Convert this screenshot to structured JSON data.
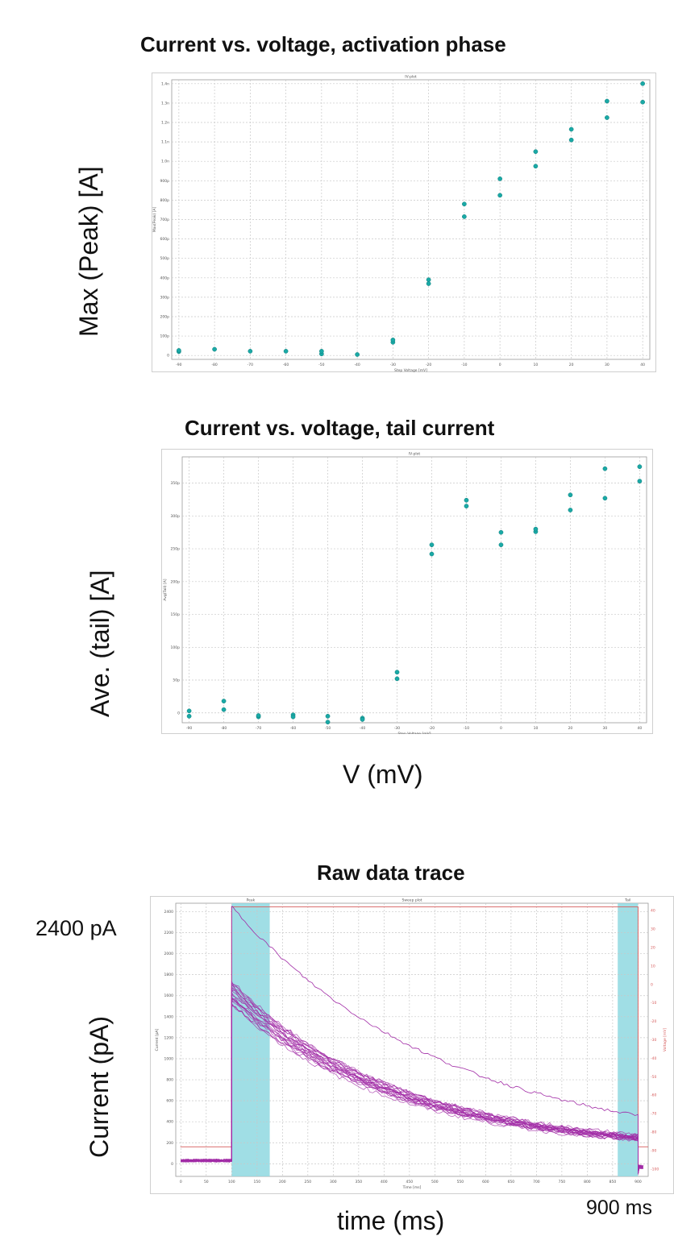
{
  "chart_data": [
    {
      "type": "scatter",
      "title": "Current vs. voltage, activation phase",
      "inner_title": "IV-plot",
      "ylabel": "Max (Peak) [A]",
      "inner_ylabel": "Max(Peak) [A]",
      "inner_xlabel": "Step Voltage [mV]",
      "xlim": [
        -92,
        42
      ],
      "ylim": [
        -20,
        1420
      ],
      "x_ticks": [
        -90,
        -80,
        -70,
        -60,
        -50,
        -40,
        -30,
        -20,
        -10,
        0,
        10,
        20,
        30,
        40
      ],
      "y_ticks": [
        0,
        100,
        200,
        300,
        400,
        500,
        600,
        700,
        800,
        900,
        1000,
        1100,
        1200,
        1300,
        1400
      ],
      "y_tick_labels": [
        "0",
        "100p",
        "200p",
        "300p",
        "400p",
        "500p",
        "600p",
        "700p",
        "800p",
        "900p",
        "1.0n",
        "1.1n",
        "1.2n",
        "1.3n",
        "1.4n"
      ],
      "grid": true,
      "color": "#1aa9a6",
      "points": [
        {
          "x": -90,
          "y": 20
        },
        {
          "x": -90,
          "y": 26
        },
        {
          "x": -80,
          "y": 32
        },
        {
          "x": -70,
          "y": 22
        },
        {
          "x": -60,
          "y": 22
        },
        {
          "x": -50,
          "y": 8
        },
        {
          "x": -50,
          "y": 22
        },
        {
          "x": -40,
          "y": 5
        },
        {
          "x": -30,
          "y": 68
        },
        {
          "x": -30,
          "y": 80
        },
        {
          "x": -20,
          "y": 370
        },
        {
          "x": -20,
          "y": 390
        },
        {
          "x": -10,
          "y": 715
        },
        {
          "x": -10,
          "y": 780
        },
        {
          "x": 0,
          "y": 825
        },
        {
          "x": 0,
          "y": 910
        },
        {
          "x": 10,
          "y": 975
        },
        {
          "x": 10,
          "y": 1050
        },
        {
          "x": 20,
          "y": 1110
        },
        {
          "x": 20,
          "y": 1165
        },
        {
          "x": 30,
          "y": 1225
        },
        {
          "x": 30,
          "y": 1310
        },
        {
          "x": 40,
          "y": 1305
        },
        {
          "x": 40,
          "y": 1400
        }
      ]
    },
    {
      "type": "scatter",
      "title": "Current vs. voltage, tail current",
      "inner_title": "IV-plot",
      "ylabel": "Ave. (tail) [A]",
      "inner_ylabel": "Avg(Tail) [A]",
      "inner_xlabel": "Step Voltage [mV]",
      "xlabel": "V (mV)",
      "xlim": [
        -92,
        42
      ],
      "ylim": [
        -15,
        390
      ],
      "x_ticks": [
        -90,
        -80,
        -70,
        -60,
        -50,
        -40,
        -30,
        -20,
        -10,
        0,
        10,
        20,
        30,
        40
      ],
      "y_ticks": [
        0,
        50,
        100,
        150,
        200,
        250,
        300,
        350
      ],
      "y_tick_labels": [
        "0",
        "50p",
        "100p",
        "150p",
        "200p",
        "250p",
        "300p",
        "350p"
      ],
      "grid": true,
      "color": "#1aa9a6",
      "points": [
        {
          "x": -90,
          "y": -5
        },
        {
          "x": -90,
          "y": 3
        },
        {
          "x": -80,
          "y": 5
        },
        {
          "x": -80,
          "y": 18
        },
        {
          "x": -70,
          "y": -6
        },
        {
          "x": -70,
          "y": -4
        },
        {
          "x": -60,
          "y": -3
        },
        {
          "x": -60,
          "y": -6
        },
        {
          "x": -50,
          "y": -5
        },
        {
          "x": -50,
          "y": -14
        },
        {
          "x": -40,
          "y": -8
        },
        {
          "x": -40,
          "y": -10
        },
        {
          "x": -30,
          "y": 52
        },
        {
          "x": -30,
          "y": 62
        },
        {
          "x": -20,
          "y": 242
        },
        {
          "x": -20,
          "y": 256
        },
        {
          "x": -10,
          "y": 315
        },
        {
          "x": -10,
          "y": 324
        },
        {
          "x": 0,
          "y": 256
        },
        {
          "x": 0,
          "y": 275
        },
        {
          "x": 10,
          "y": 276
        },
        {
          "x": 10,
          "y": 280
        },
        {
          "x": 20,
          "y": 309
        },
        {
          "x": 20,
          "y": 332
        },
        {
          "x": 30,
          "y": 327
        },
        {
          "x": 30,
          "y": 372
        },
        {
          "x": 40,
          "y": 353
        },
        {
          "x": 40,
          "y": 375
        }
      ]
    },
    {
      "type": "line",
      "title": "Raw data trace",
      "inner_title": "Sweep plot",
      "ylabel": "Current (pA)",
      "inner_ylabel": "Current [pA]",
      "inner_xlabel": "Time [ms]",
      "xlabel": "time (ms)",
      "right_ylabel": "Voltage [mV]",
      "xlim": [
        -10,
        920
      ],
      "ylim": [
        -120,
        2480
      ],
      "x_ticks": [
        0,
        50,
        100,
        150,
        200,
        250,
        300,
        350,
        400,
        450,
        500,
        550,
        600,
        650,
        700,
        750,
        800,
        850,
        900
      ],
      "y_ticks": [
        0,
        200,
        400,
        600,
        800,
        1000,
        1200,
        1400,
        1600,
        1800,
        2000,
        2200,
        2400
      ],
      "y2_ticks": [
        40,
        30,
        20,
        10,
        0,
        -10,
        -20,
        -30,
        -40,
        -50,
        -60,
        -70,
        -80,
        -90,
        -100
      ],
      "y2lim": [
        -104,
        44
      ],
      "grid": true,
      "annotation_left": "2400 pA",
      "annotation_right": "900 ms",
      "regions": [
        {
          "label": "Peak",
          "x0": 100,
          "x1": 175,
          "color": "#8fd8e0"
        },
        {
          "label": "Tail",
          "x0": 860,
          "x1": 900,
          "color": "#8fd8e0"
        }
      ],
      "trace_color": "#a12ba6",
      "voltage_color": "#d65c5c",
      "step_start": 100,
      "step_end": 900,
      "baseline": 30,
      "bundle_peak": 1740,
      "bundle_tau": 330,
      "bundle_plateau": 120,
      "bundle_count": 20,
      "outlier_peak": 2450,
      "outlier_tau": 420,
      "outlier_plateau": 110
    }
  ]
}
